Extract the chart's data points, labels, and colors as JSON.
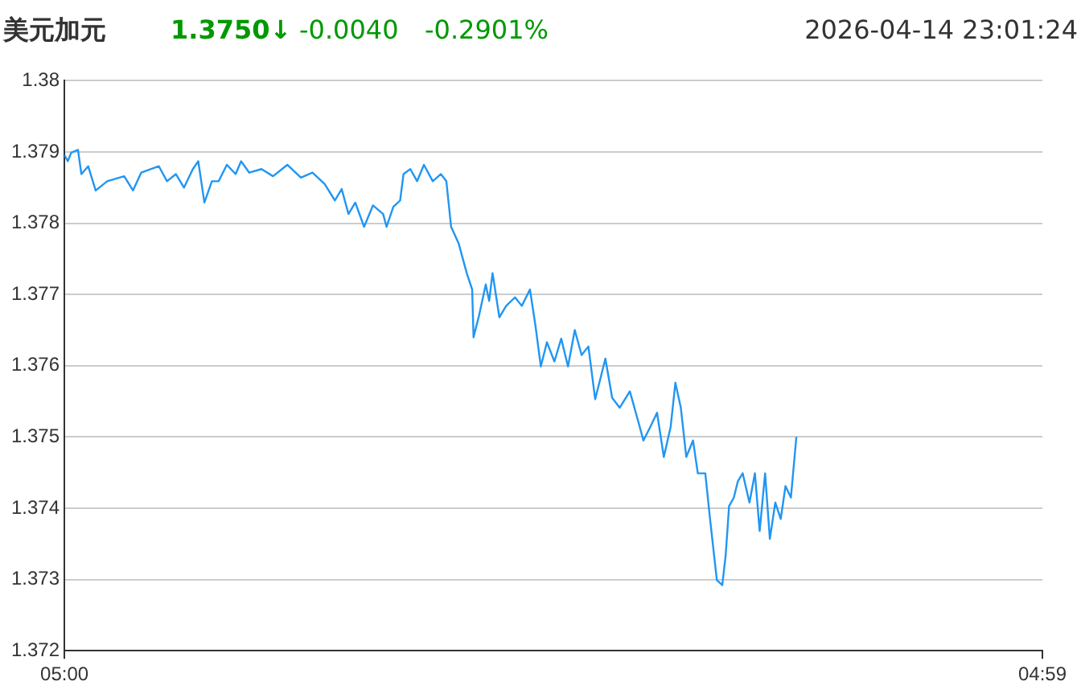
{
  "chart_data": {
    "type": "line",
    "title": "美元加元",
    "annotations": [
      "1.3750↓",
      "-0.0040",
      "-0.2901%",
      "2026-04-14 23:01:24"
    ],
    "series": [
      {
        "color": "#2196f3",
        "x": [
          "2026-04-14T05:00",
          "2026-04-14T05:05",
          "2026-04-14T05:10",
          "2026-04-14T05:20",
          "2026-04-14T05:25",
          "2026-04-14T05:35",
          "2026-04-14T05:46",
          "2026-04-14T06:03",
          "2026-04-14T06:28",
          "2026-04-14T06:41",
          "2026-04-14T06:53",
          "2026-04-14T07:19",
          "2026-04-14T07:31",
          "2026-04-14T07:44",
          "2026-04-14T07:56",
          "2026-04-14T08:09",
          "2026-04-14T08:17",
          "2026-04-14T08:26",
          "2026-04-14T08:37",
          "2026-04-14T08:47",
          "2026-04-14T08:59",
          "2026-04-14T09:12",
          "2026-04-14T09:20",
          "2026-04-14T09:32",
          "2026-04-14T09:50",
          "2026-04-14T10:07",
          "2026-04-14T10:28",
          "2026-04-14T10:48",
          "2026-04-14T11:05",
          "2026-04-14T11:23",
          "2026-04-14T11:38",
          "2026-04-14T11:48",
          "2026-04-14T11:58",
          "2026-04-14T12:08",
          "2026-04-14T12:21",
          "2026-04-14T12:34",
          "2026-04-14T12:49",
          "2026-04-14T12:54",
          "2026-04-14T13:04",
          "2026-04-14T13:14",
          "2026-04-14T13:19",
          "2026-04-14T13:29",
          "2026-04-14T13:39",
          "2026-04-14T13:49",
          "2026-04-14T14:02",
          "2026-04-14T14:14",
          "2026-04-14T14:22",
          "2026-04-14T14:29",
          "2026-04-14T14:40",
          "2026-04-14T14:52",
          "2026-04-14T15:00",
          "2026-04-14T15:02",
          "2026-04-14T15:10",
          "2026-04-14T15:20",
          "2026-04-14T15:25",
          "2026-04-14T15:30",
          "2026-04-14T15:40",
          "2026-04-14T15:50",
          "2026-04-14T16:03",
          "2026-04-14T16:13",
          "2026-04-14T16:25",
          "2026-04-14T16:33",
          "2026-04-14T16:41",
          "2026-04-14T16:50",
          "2026-04-14T17:01",
          "2026-04-14T17:11",
          "2026-04-14T17:21",
          "2026-04-14T17:31",
          "2026-04-14T17:41",
          "2026-04-14T17:51",
          "2026-04-14T18:01",
          "2026-04-14T18:16",
          "2026-04-14T18:26",
          "2026-04-14T18:37",
          "2026-04-14T18:52",
          "2026-04-14T19:04",
          "2026-04-14T19:12",
          "2026-04-14T19:22",
          "2026-04-14T19:32",
          "2026-04-14T19:42",
          "2026-04-14T19:52",
          "2026-04-14T19:59",
          "2026-04-14T20:07",
          "2026-04-14T20:15",
          "2026-04-14T20:25",
          "2026-04-14T20:32",
          "2026-04-14T20:43",
          "2026-04-14T20:50",
          "2026-04-14T21:00",
          "2026-04-14T21:08",
          "2026-04-14T21:13",
          "2026-04-14T21:18",
          "2026-04-14T21:25",
          "2026-04-14T21:31",
          "2026-04-14T21:38",
          "2026-04-14T21:48",
          "2026-04-14T21:56",
          "2026-04-14T22:03",
          "2026-04-14T22:11",
          "2026-04-14T22:18",
          "2026-04-14T22:26",
          "2026-04-14T22:34",
          "2026-04-14T22:41",
          "2026-04-14T22:49",
          "2026-04-14T22:57"
        ],
        "values": [
          1.37896,
          1.37887,
          1.37899,
          1.37903,
          1.37869,
          1.3788,
          1.37846,
          1.37859,
          1.37866,
          1.37846,
          1.37871,
          1.3788,
          1.37859,
          1.37869,
          1.3785,
          1.37876,
          1.37887,
          1.37829,
          1.37859,
          1.37859,
          1.37882,
          1.37869,
          1.37887,
          1.37871,
          1.37876,
          1.37866,
          1.37882,
          1.37864,
          1.37871,
          1.37855,
          1.37832,
          1.37848,
          1.37813,
          1.37829,
          1.37795,
          1.37825,
          1.37813,
          1.37795,
          1.37823,
          1.37832,
          1.37869,
          1.37876,
          1.37859,
          1.37882,
          1.37859,
          1.37869,
          1.37859,
          1.37795,
          1.37772,
          1.3773,
          1.37707,
          1.3764,
          1.3767,
          1.37714,
          1.37691,
          1.3773,
          1.37668,
          1.37684,
          1.37696,
          1.37684,
          1.37707,
          1.37657,
          1.37599,
          1.37633,
          1.37606,
          1.37638,
          1.37599,
          1.3765,
          1.37615,
          1.37627,
          1.37553,
          1.3761,
          1.37555,
          1.37541,
          1.37564,
          1.37523,
          1.37495,
          1.37514,
          1.37534,
          1.37472,
          1.37514,
          1.37576,
          1.37541,
          1.37472,
          1.37495,
          1.37449,
          1.37449,
          1.37385,
          1.37299,
          1.37292,
          1.37334,
          1.37403,
          1.37415,
          1.37438,
          1.37449,
          1.37408,
          1.37449,
          1.37368,
          1.37449,
          1.37357,
          1.37408,
          1.37385,
          1.37431,
          1.37415,
          1.375
        ]
      }
    ],
    "xlim": [
      "2026-04-14T05:00",
      "2026-04-15T04:59"
    ],
    "xticks": [
      {
        "value": "2026-04-14T05:00",
        "label": "05:00"
      },
      {
        "value": "2026-04-15T04:59",
        "label": "04:59"
      }
    ],
    "ylim": [
      1.372,
      1.38
    ],
    "yticks": [
      1.372,
      1.373,
      1.374,
      1.375,
      1.376,
      1.377,
      1.378,
      1.379,
      1.38
    ],
    "grid": "y",
    "legend": false,
    "marker": "none",
    "line_style": "solid"
  }
}
